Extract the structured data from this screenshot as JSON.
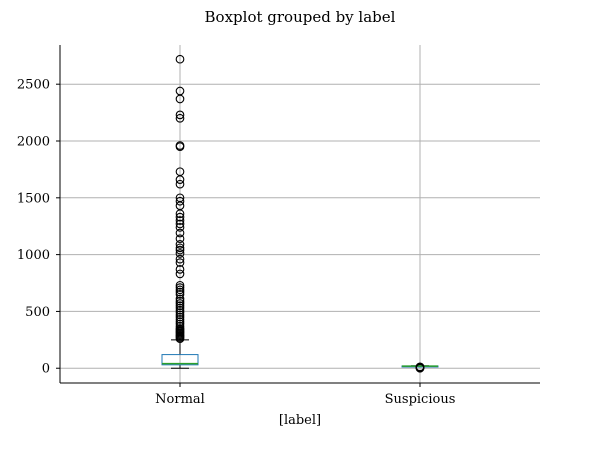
{
  "chart_data": {
    "type": "boxplot",
    "title": "Boxplot grouped by label",
    "xlabel": "[label]",
    "ylabel": "",
    "ylim": [
      -130,
      2845
    ],
    "yticks": [
      0,
      500,
      1000,
      1500,
      2000,
      2500
    ],
    "grid": true,
    "legend": "none",
    "categories": [
      "Normal",
      "Suspicious"
    ],
    "series": [
      {
        "category": "Normal",
        "min": 0,
        "q1": 30,
        "median": 40,
        "q3": 120,
        "max": 250,
        "outliers": [
          260,
          270,
          280,
          290,
          300,
          310,
          320,
          330,
          340,
          350,
          370,
          390,
          410,
          430,
          450,
          470,
          490,
          510,
          530,
          550,
          570,
          590,
          610,
          650,
          670,
          690,
          710,
          730,
          830,
          870,
          930,
          960,
          1010,
          1040,
          1060,
          1090,
          1140,
          1190,
          1240,
          1270,
          1300,
          1330,
          1360,
          1430,
          1470,
          1500,
          1620,
          1660,
          1730,
          1950,
          1960,
          2200,
          2230,
          2370,
          2440,
          2720
        ]
      },
      {
        "category": "Suspicious",
        "min": 15,
        "q1": 16,
        "median": 18,
        "q3": 20,
        "max": 22,
        "outliers": [
          0,
          2,
          5,
          8,
          10,
          12
        ]
      }
    ],
    "colors": {
      "box": "#1f77b4",
      "median": "#2ca02c",
      "whisker": "#000000",
      "outlier": "#000000",
      "grid": "#b0b0b0",
      "axis": "#000000"
    }
  }
}
